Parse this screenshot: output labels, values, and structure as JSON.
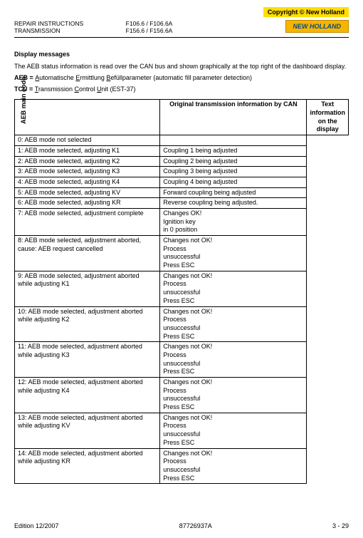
{
  "copyright": "Copyright © New Holland",
  "header": {
    "left1": "REPAIR INSTRUCTIONS",
    "left2": "TRANSMISSION",
    "mid1": "F106.6 / F106.6A",
    "mid2": "F156.6 / F156.6A",
    "brand": "NEW HOLLAND"
  },
  "section_title": "Display messages",
  "intro": "The AEB status information is read over the CAN bus and shown graphically at the top right of the dashboard display.",
  "def_aeb_label": "AEB = ",
  "def_aeb_text": "utomatische ",
  "def_aeb_a": "A",
  "def_aeb_e": "E",
  "def_aeb_text2": "rmittlung ",
  "def_aeb_b": "B",
  "def_aeb_text3": "efüllparameter (automatic fill parameter detection)",
  "def_tcu_label": "TCU = ",
  "def_tcu_t": "T",
  "def_tcu_text": "ransmission ",
  "def_tcu_c": "C",
  "def_tcu_text2": "ontrol ",
  "def_tcu_u": "U",
  "def_tcu_text3": "nit (EST-37)",
  "side_label": "AEB main code:",
  "th_left": "Original transmission information by CAN",
  "th_right": "Text information on the display",
  "rows": [
    {
      "l": "0: AEB mode not selected",
      "r": ""
    },
    {
      "l": "1: AEB mode selected, adjusting K1",
      "r": "Coupling 1 being adjusted"
    },
    {
      "l": "2: AEB mode selected, adjusting K2",
      "r": "Coupling 2 being adjusted"
    },
    {
      "l": "3: AEB mode selected, adjusting K3",
      "r": "Coupling 3 being adjusted"
    },
    {
      "l": "4: AEB mode selected, adjusting K4",
      "r": "Coupling 4 being adjusted"
    },
    {
      "l": "5: AEB mode selected, adjusting KV",
      "r": "Forward coupling being adjusted"
    },
    {
      "l": "6: AEB mode selected, adjusting KR",
      "r": "Reverse coupling being adjusted."
    },
    {
      "l": "7: AEB mode selected, adjustment complete",
      "r": "Changes OK!\nIgnition key\nin 0 position"
    },
    {
      "l": "8: AEB mode selected, adjustment aborted,\ncause: AEB request cancelled",
      "r": "Changes not OK!\nProcess\nunsuccessful\nPress ESC"
    },
    {
      "l": "9: AEB mode selected, adjustment aborted\nwhile adjusting K1",
      "r": "Changes not OK!\nProcess\nunsuccessful\nPress ESC"
    },
    {
      "l": "10: AEB mode selected, adjustment aborted\nwhile adjusting K2",
      "r": "Changes not OK!\nProcess\nunsuccessful\nPress ESC"
    },
    {
      "l": "11: AEB mode selected, adjustment aborted\nwhile adjusting K3",
      "r": "Changes not OK!\nProcess\nunsuccessful\nPress ESC"
    },
    {
      "l": "12: AEB mode selected, adjustment aborted\nwhile adjusting K4",
      "r": "Changes not OK!\nProcess\nunsuccessful\nPress ESC"
    },
    {
      "l": "13: AEB mode selected, adjustment aborted\nwhile adjusting KV",
      "r": "Changes not OK!\nProcess\nunsuccessful\nPress ESC"
    },
    {
      "l": "14: AEB mode selected, adjustment aborted\nwhile adjusting KR",
      "r": "Changes not OK!\nProcess\nunsuccessful\nPress ESC"
    }
  ],
  "footer": {
    "left": "Edition 12/2007",
    "mid": "87726937A",
    "right": "3 - 29"
  }
}
